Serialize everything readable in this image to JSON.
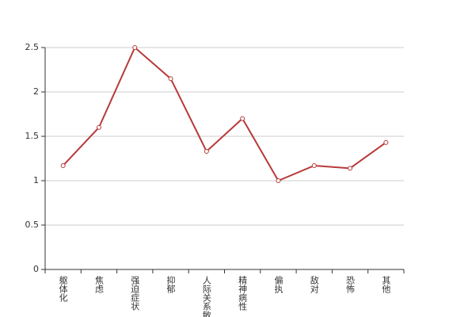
{
  "chart_data": {
    "type": "line",
    "categories": [
      "躯体化",
      "焦虑",
      "强迫症状",
      "抑郁",
      "人际关系敏感",
      "精神病性",
      "偏执",
      "敌对",
      "恐怖",
      "其他"
    ],
    "series": [
      {
        "name": "",
        "color": "#b7393a",
        "values": [
          1.17,
          1.6,
          2.5,
          2.15,
          1.33,
          1.7,
          1.0,
          1.17,
          1.14,
          1.43
        ]
      }
    ],
    "ylim": [
      0,
      2.5
    ],
    "yticks": [
      0,
      0.5,
      1,
      1.5,
      2,
      2.5
    ],
    "grid": true
  }
}
